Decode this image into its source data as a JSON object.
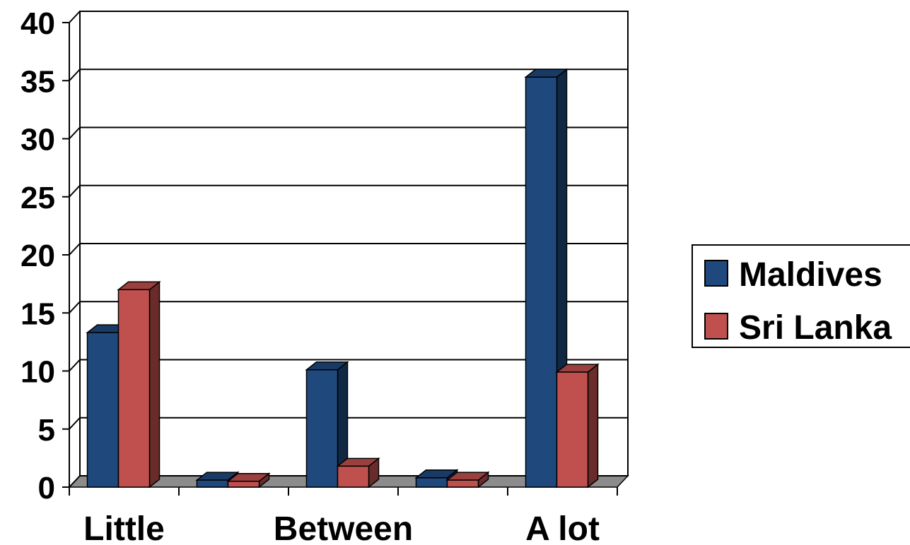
{
  "chart_data": {
    "type": "bar",
    "style": "3d-clustered-column",
    "categories": [
      "Little",
      "",
      "Between",
      "",
      "A lot"
    ],
    "series": [
      {
        "name": "Maldives",
        "values": [
          13,
          0.3,
          9.8,
          0.5,
          35
        ],
        "color": "#1F497D"
      },
      {
        "name": "Sri Lanka",
        "values": [
          16.7,
          0.2,
          1.5,
          0.3,
          9.6
        ],
        "color": "#C0504D"
      }
    ],
    "ylim": [
      0,
      40
    ],
    "yticks": [
      "0",
      "5",
      "10",
      "15",
      "20",
      "25",
      "30",
      "35",
      "40"
    ],
    "xlabel": "",
    "ylabel": "",
    "grid": true,
    "legend_position": "right"
  }
}
